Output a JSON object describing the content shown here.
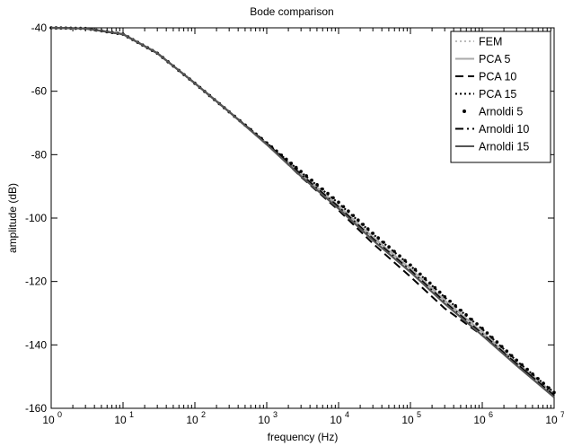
{
  "chart_data": {
    "type": "line",
    "title": "Bode comparison",
    "xlabel": "frequency (Hz)",
    "ylabel": "amplitude (dB)",
    "x_scale": "log",
    "xlim": [
      1,
      10000000
    ],
    "ylim": [
      -160,
      -40
    ],
    "grid": false,
    "legend_position": "top-right",
    "x_ticks": [
      {
        "base": "10",
        "exp": "0",
        "value": 1
      },
      {
        "base": "10",
        "exp": "1",
        "value": 10
      },
      {
        "base": "10",
        "exp": "2",
        "value": 100
      },
      {
        "base": "10",
        "exp": "3",
        "value": 1000
      },
      {
        "base": "10",
        "exp": "4",
        "value": 10000
      },
      {
        "base": "10",
        "exp": "5",
        "value": 100000
      },
      {
        "base": "10",
        "exp": "6",
        "value": 1000000
      },
      {
        "base": "10",
        "exp": "7",
        "value": 10000000
      }
    ],
    "y_ticks": [
      "-40",
      "-60",
      "-80",
      "-100",
      "-120",
      "-140",
      "-160"
    ],
    "x": [
      1,
      3,
      10,
      30,
      100,
      300,
      1000,
      3000,
      10000,
      30000,
      100000,
      300000,
      1000000,
      3000000,
      10000000
    ],
    "series": [
      {
        "name": "FEM",
        "color": "#bbbbbb",
        "style": "dotted",
        "values": [
          -40,
          -40.2,
          -42,
          -48,
          -57.5,
          -66.5,
          -76.5,
          -86,
          -96,
          -105.5,
          -115.5,
          -125.5,
          -135.5,
          -145,
          -155
        ]
      },
      {
        "name": "PCA 5",
        "color": "#aaaaaa",
        "style": "solid",
        "values": [
          -40,
          -40.2,
          -42,
          -48,
          -57.5,
          -66.5,
          -76.5,
          -86,
          -96.2,
          -106,
          -116,
          -126,
          -136,
          -145.5,
          -155.5
        ]
      },
      {
        "name": "PCA 10",
        "color": "#000000",
        "style": "dashed",
        "values": [
          -40,
          -40.2,
          -42,
          -48,
          -57.5,
          -66.5,
          -76.5,
          -87,
          -97.5,
          -108,
          -118.5,
          -128.5,
          -137,
          -146,
          -156
        ]
      },
      {
        "name": "PCA 15",
        "color": "#000000",
        "style": "dotted",
        "values": [
          -40,
          -40.2,
          -42,
          -48,
          -57.5,
          -66.5,
          -76.3,
          -85.5,
          -95.3,
          -105,
          -115,
          -125,
          -135,
          -145,
          -155
        ]
      },
      {
        "name": "Arnoldi 5",
        "color": "#000000",
        "style": "markers",
        "values": [
          -40,
          -40.2,
          -42,
          -48,
          -57.5,
          -66.5,
          -76.3,
          -85.3,
          -95,
          -104.8,
          -114.8,
          -124.8,
          -134.8,
          -144.8,
          -155
        ]
      },
      {
        "name": "Arnoldi 10",
        "color": "#000000",
        "style": "dashdot",
        "values": [
          -40,
          -40.2,
          -42,
          -48,
          -57.5,
          -66.5,
          -76.5,
          -86.3,
          -96.5,
          -106.5,
          -116.5,
          -126.5,
          -136.5,
          -146,
          -156
        ]
      },
      {
        "name": "Arnoldi 15",
        "color": "#555555",
        "style": "solid",
        "values": [
          -40,
          -40.2,
          -42,
          -48,
          -57.5,
          -66.5,
          -76.8,
          -86.8,
          -97,
          -107,
          -117,
          -127,
          -137,
          -146.5,
          -156.5
        ]
      }
    ]
  }
}
